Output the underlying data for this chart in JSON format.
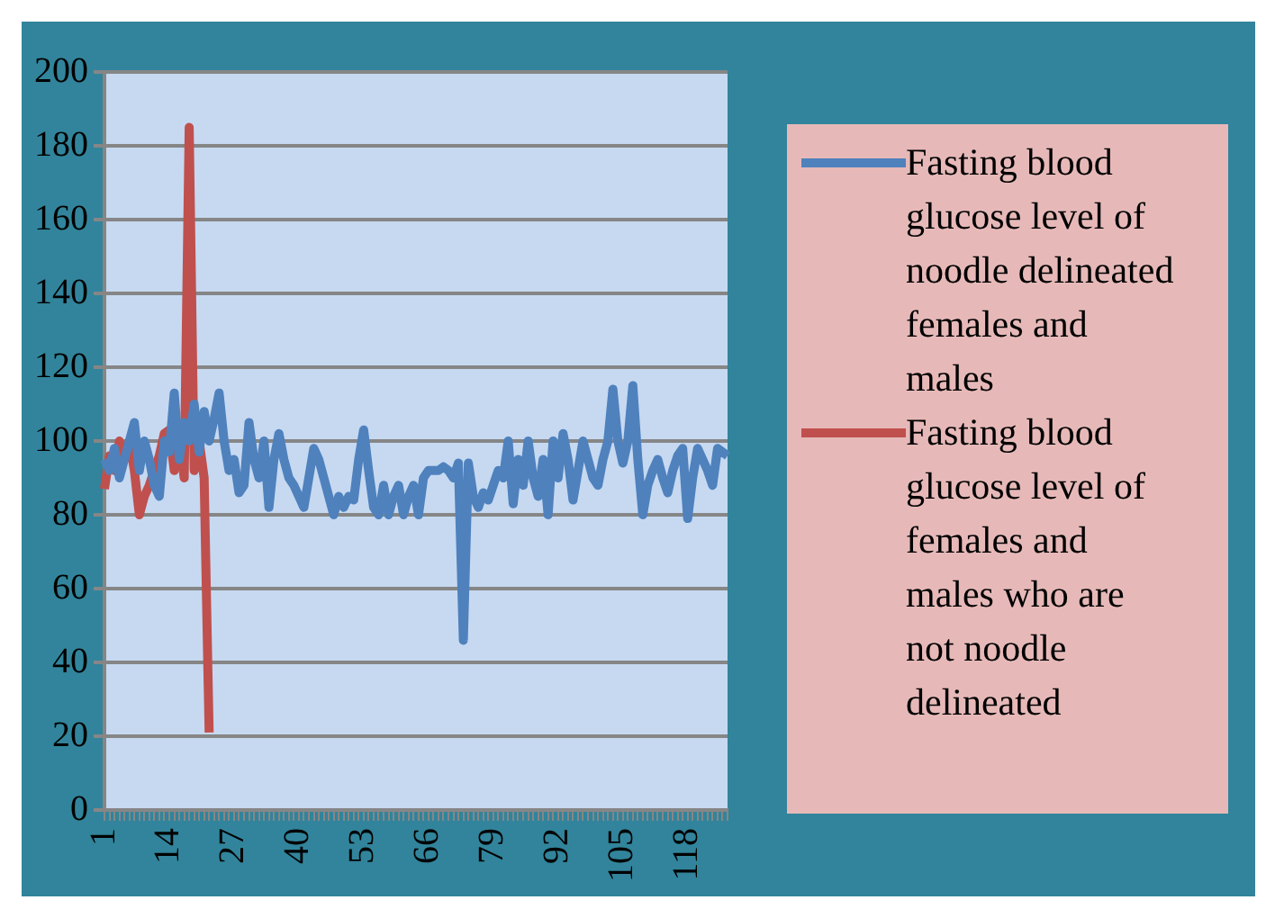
{
  "chart_data": {
    "type": "line",
    "categories": [
      "1",
      null,
      null,
      null,
      null,
      null,
      null,
      null,
      null,
      null,
      null,
      null,
      null,
      "14",
      null,
      null,
      null,
      null,
      null,
      null,
      null,
      null,
      null,
      null,
      null,
      null,
      "27",
      null,
      null,
      null,
      null,
      null,
      null,
      null,
      null,
      null,
      null,
      null,
      null,
      "40",
      null,
      null,
      null,
      null,
      null,
      null,
      null,
      null,
      null,
      null,
      null,
      null,
      "53",
      null,
      null,
      null,
      null,
      null,
      null,
      null,
      null,
      null,
      null,
      null,
      null,
      "66",
      null,
      null,
      null,
      null,
      null,
      null,
      null,
      null,
      null,
      null,
      null,
      null,
      "79",
      null,
      null,
      null,
      null,
      null,
      null,
      null,
      null,
      null,
      null,
      null,
      null,
      "92",
      null,
      null,
      null,
      null,
      null,
      null,
      null,
      null,
      null,
      null,
      null,
      null,
      "105",
      null,
      null,
      null,
      null,
      null,
      null,
      null,
      null,
      null,
      null,
      null,
      null,
      "118",
      null,
      null,
      null,
      null,
      null,
      null,
      null,
      null
    ],
    "series": [
      {
        "name": "Fasting blood glucose level of noodle delineated females and males",
        "color": "#4f81bd",
        "values": [
          95,
          92,
          98,
          90,
          95,
          100,
          105,
          92,
          100,
          95,
          88,
          85,
          100,
          97,
          113,
          95,
          105,
          100,
          110,
          97,
          108,
          100,
          106,
          113,
          100,
          92,
          95,
          86,
          88,
          105,
          95,
          90,
          100,
          82,
          95,
          102,
          95,
          90,
          88,
          85,
          82,
          90,
          98,
          95,
          90,
          85,
          80,
          85,
          82,
          85,
          84,
          95,
          103,
          92,
          82,
          80,
          88,
          80,
          85,
          88,
          80,
          85,
          88,
          80,
          90,
          92,
          92,
          92,
          93,
          92,
          90,
          94,
          46,
          94,
          85,
          82,
          86,
          84,
          88,
          92,
          90,
          100,
          83,
          95,
          88,
          100,
          90,
          85,
          95,
          80,
          100,
          90,
          102,
          95,
          84,
          92,
          100,
          95,
          90,
          88,
          95,
          100,
          114,
          100,
          94,
          100,
          115,
          95,
          80,
          88,
          92,
          95,
          90,
          86,
          92,
          96,
          98,
          79,
          90,
          98,
          95,
          92,
          88,
          98,
          97,
          96
        ]
      },
      {
        "name": "Fasting blood glucose level of females and males who are not noodle delineated",
        "color": "#c0504d",
        "values": [
          87,
          96,
          92,
          100,
          95,
          100,
          92,
          80,
          85,
          88,
          92,
          96,
          102,
          103,
          92,
          100,
          90,
          185,
          92,
          100,
          90,
          21,
          null,
          null,
          null,
          null,
          null,
          null,
          null,
          null,
          null,
          null,
          null,
          null,
          null,
          null,
          null,
          null,
          null,
          null,
          null,
          null,
          null,
          null,
          null,
          null,
          null,
          null,
          null,
          null,
          null,
          null,
          null,
          null,
          null,
          null,
          null,
          null,
          null,
          null,
          null,
          null,
          null,
          null,
          null,
          null,
          null,
          null,
          null,
          null,
          null,
          null,
          null,
          null,
          null,
          null,
          null,
          null,
          null,
          null,
          null,
          null,
          null,
          null,
          null,
          null,
          null,
          null,
          null,
          null,
          null,
          null,
          null,
          null,
          null,
          null,
          null,
          null,
          null,
          null,
          null,
          null,
          null,
          null,
          null,
          null,
          null,
          null,
          null,
          null,
          null,
          null,
          null,
          null,
          null,
          null,
          null,
          null,
          null,
          null,
          null,
          null,
          null,
          null,
          null,
          null
        ]
      }
    ],
    "ylim": [
      0,
      200
    ],
    "yticks": [
      0,
      20,
      40,
      60,
      80,
      100,
      120,
      140,
      160,
      180,
      200
    ],
    "grid": "y",
    "legend": "right",
    "marker": "none",
    "line_style": "solid"
  }
}
